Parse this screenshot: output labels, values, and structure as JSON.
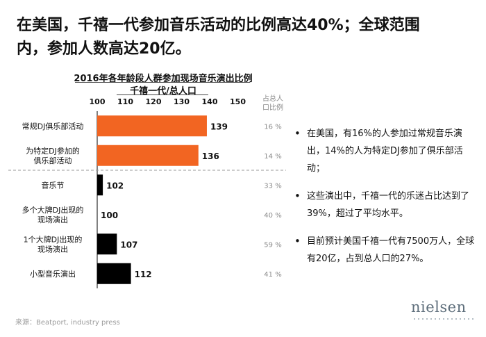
{
  "headline": {
    "line1": "在美国，千禧一代参加音乐活动的比例高达40%；全球范围",
    "line2": "内，参加人数高达20亿。"
  },
  "chart_data": {
    "type": "bar",
    "orientation": "horizontal",
    "title": "2016年各年龄段人群参加现场音乐演出比例",
    "subtitle": "千禧一代/总人口",
    "share_header": [
      "占总人",
      "口比例"
    ],
    "xlim": [
      100,
      150
    ],
    "xticks": [
      "100",
      "110",
      "120",
      "130",
      "140",
      "150"
    ],
    "categories": [
      [
        "常规DJ俱乐部活动"
      ],
      [
        "为特定DJ参加的",
        "俱乐部活动"
      ],
      [
        "音乐节"
      ],
      [
        "多个大牌DJ出现的",
        "现场演出"
      ],
      [
        "1个大牌DJ出现的",
        "现场演出"
      ],
      [
        "小型音乐演出"
      ]
    ],
    "values": [
      139,
      136,
      102,
      100,
      107,
      112
    ],
    "value_labels": [
      "139",
      "136",
      "102",
      "100",
      "107",
      "112"
    ],
    "shares": [
      "16 %",
      "14 %",
      "33 %",
      "40 %",
      "59 %",
      "41 %"
    ],
    "bar_colors": [
      "#f26522",
      "#f26522",
      "#000000",
      "#000000",
      "#000000",
      "#000000"
    ],
    "separator_after_index": 1
  },
  "bullets": [
    "在美国，有16%的人参加过常规音乐演出，14%的人为特定DJ参加了俱乐部活动；",
    "这些演出中，千禧一代的乐迷占比达到了39%，超过了平均水平。",
    "目前预计美国千禧一代有7500万人，全球有20亿，占到总人口的27%。"
  ],
  "source": "来源：Beatport, industry press",
  "logo": "nielsen",
  "colors": {
    "accent_orange": "#f26522",
    "bar_black": "#000000",
    "muted_text": "#8a8a8a"
  }
}
